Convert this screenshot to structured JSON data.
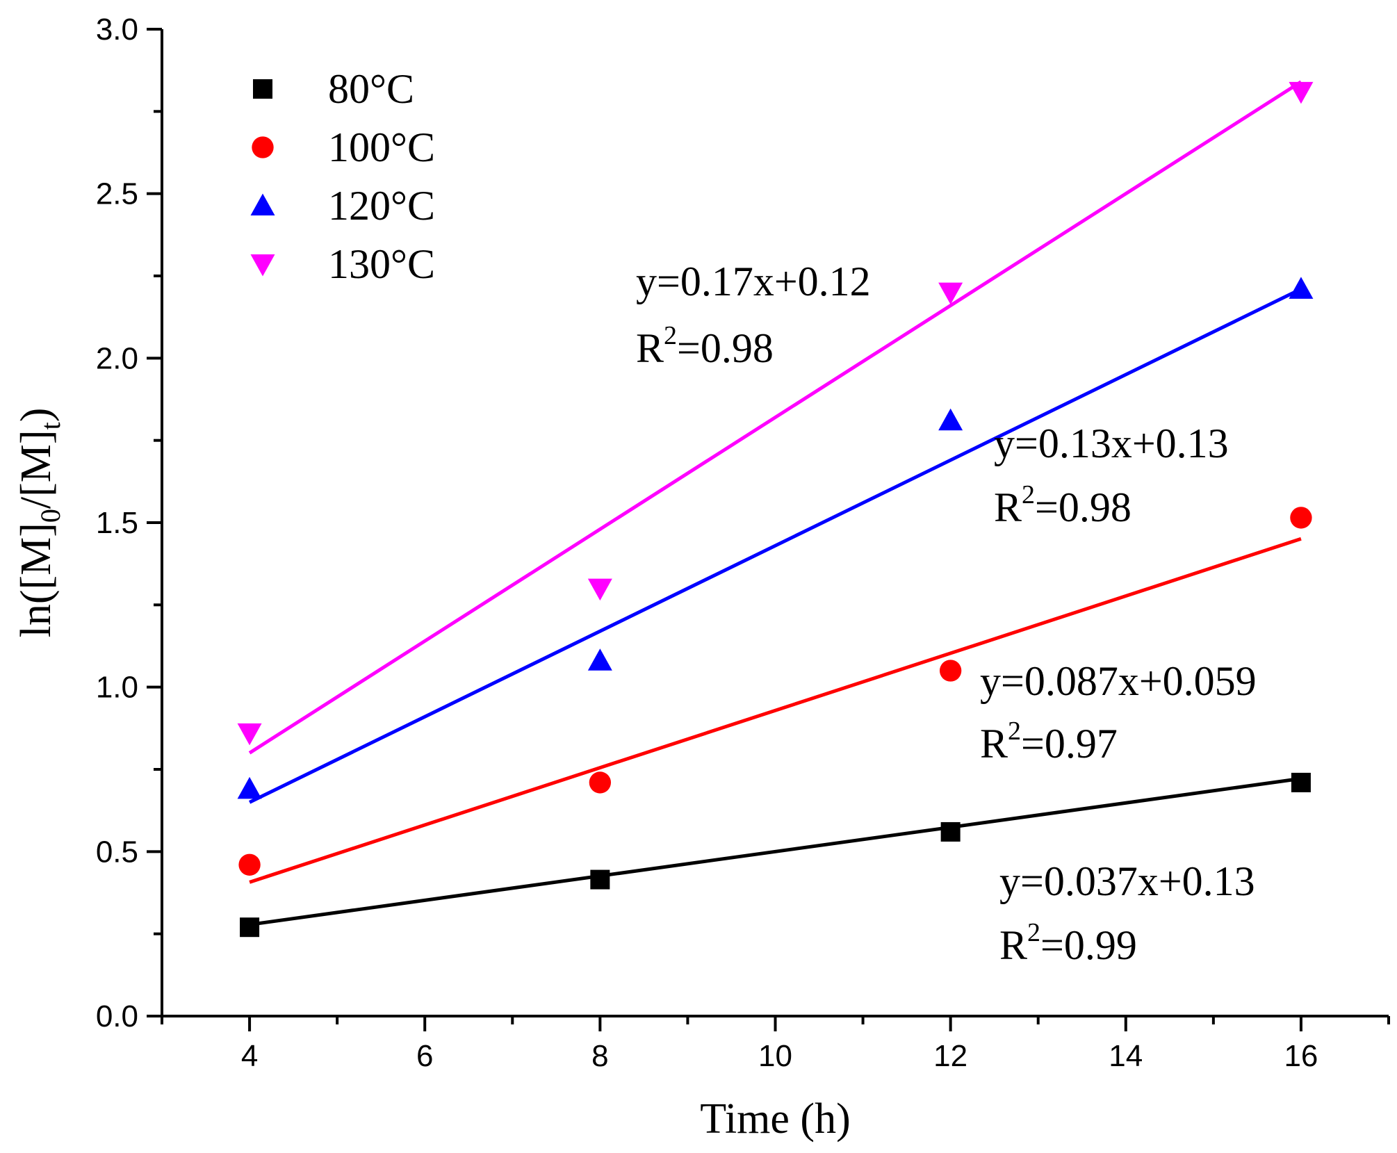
{
  "chart_data": {
    "type": "scatter",
    "xlabel": "Time (h)",
    "ylabel_parts": {
      "prefix": "ln([M]",
      "sub1": "0",
      "middle": "/[M]",
      "sub2": "t",
      "suffix": ")"
    },
    "xlim": [
      3,
      17
    ],
    "ylim": [
      0.0,
      3.0
    ],
    "xticks": [
      4,
      6,
      8,
      10,
      12,
      14,
      16
    ],
    "xtick_labels": [
      "4",
      "6",
      "8",
      "10",
      "12",
      "14",
      "16"
    ],
    "yticks": [
      0.0,
      0.5,
      1.0,
      1.5,
      2.0,
      2.5,
      3.0
    ],
    "ytick_labels": [
      "0.0",
      "0.5",
      "1.0",
      "1.5",
      "2.0",
      "2.5",
      "3.0"
    ],
    "legend_position": "top-left",
    "series": [
      {
        "name": "80°C",
        "marker": "square",
        "color": "#000000",
        "x": [
          4,
          8,
          12,
          16
        ],
        "y": [
          0.27,
          0.415,
          0.56,
          0.71
        ],
        "fit": {
          "slope": 0.037,
          "intercept": 0.13
        },
        "equation": "y=0.037x+0.13",
        "r2_prefix": "R",
        "r2_sup": "2",
        "r2_value": "=0.99"
      },
      {
        "name": "100°C",
        "marker": "circle",
        "color": "#ff0000",
        "x": [
          4,
          8,
          12,
          16
        ],
        "y": [
          0.46,
          0.71,
          1.05,
          1.515
        ],
        "fit": {
          "slope": 0.087,
          "intercept": 0.059
        },
        "equation": "y=0.087x+0.059",
        "r2_prefix": "R",
        "r2_sup": "2",
        "r2_value": "=0.97"
      },
      {
        "name": "120°C",
        "marker": "triangle-up",
        "color": "#0000ff",
        "x": [
          4,
          8,
          12,
          16
        ],
        "y": [
          0.69,
          1.08,
          1.81,
          2.21
        ],
        "fit": {
          "slope": 0.13,
          "intercept": 0.13
        },
        "equation": "y=0.13x+0.13",
        "r2_prefix": "R",
        "r2_sup": "2",
        "r2_value": "=0.98"
      },
      {
        "name": "130°C",
        "marker": "triangle-down",
        "color": "#ff00ff",
        "x": [
          4,
          8,
          12,
          16
        ],
        "y": [
          0.86,
          1.3,
          2.2,
          2.81
        ],
        "fit": {
          "slope": 0.17,
          "intercept": 0.12
        },
        "equation": "y=0.17x+0.12",
        "r2_prefix": "R",
        "r2_sup": "2",
        "r2_value": "=0.98"
      }
    ]
  }
}
